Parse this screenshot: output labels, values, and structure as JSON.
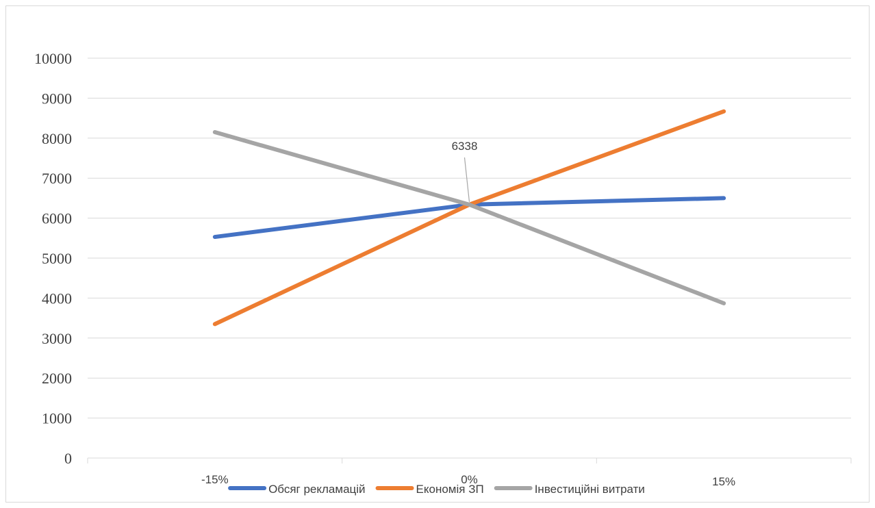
{
  "chart_data": {
    "type": "line",
    "title": "",
    "xlabel": "",
    "ylabel": "",
    "categories": [
      "-15%",
      "0%",
      "15%"
    ],
    "ylim": [
      0,
      10000
    ],
    "yticks": [
      0,
      1000,
      2000,
      3000,
      4000,
      5000,
      6000,
      7000,
      8000,
      9000,
      10000
    ],
    "grid": true,
    "legend_position": "bottom",
    "series": [
      {
        "name": "Обсяг рекламацій",
        "color": "#4472c4",
        "values": [
          5530,
          6338,
          6500
        ]
      },
      {
        "name": "Економія ЗП",
        "color": "#ed7d31",
        "values": [
          3350,
          6338,
          8670
        ]
      },
      {
        "name": "Інвестиційні витрати",
        "color": "#a5a5a5",
        "values": [
          8150,
          6338,
          3870
        ]
      }
    ],
    "annotations": [
      {
        "text": "6338",
        "category": "0%",
        "value": 6338
      }
    ]
  }
}
